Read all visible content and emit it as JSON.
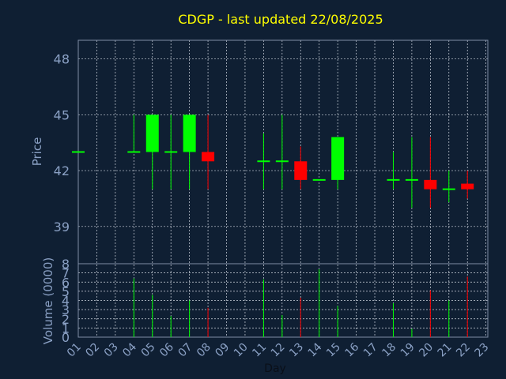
{
  "chart_data": {
    "type": "candlestick",
    "title": "CDGP - last updated 22/08/2025",
    "price_axis": {
      "label": "Price",
      "ylim": [
        37,
        49
      ],
      "ticks": [
        39,
        42,
        45,
        48
      ]
    },
    "volume_axis": {
      "label": "Volume (0000)",
      "ylim": [
        0,
        8
      ],
      "ticks": [
        0,
        1,
        2,
        3,
        4,
        5,
        6,
        7,
        8
      ]
    },
    "x_axis": {
      "label": "Day",
      "ticks": [
        "01",
        "02",
        "03",
        "04",
        "05",
        "06",
        "07",
        "08",
        "09",
        "10",
        "11",
        "12",
        "13",
        "14",
        "15",
        "16",
        "17",
        "18",
        "19",
        "20",
        "21",
        "22",
        "23"
      ]
    },
    "grid": true,
    "colors": {
      "up": "#00ff00",
      "down": "#ff0000",
      "background": "#0f1f33",
      "title": "#ffff00",
      "tick": "#8aa0c4"
    },
    "candles": [
      {
        "day": 1,
        "open": 43.0,
        "high": 43.0,
        "low": 43.0,
        "close": 43.0,
        "volume": 0
      },
      {
        "day": 4,
        "open": 43.0,
        "high": 45.0,
        "low": 43.0,
        "close": 43.0,
        "volume": 6.4
      },
      {
        "day": 5,
        "open": 43.0,
        "high": 45.0,
        "low": 41.0,
        "close": 45.0,
        "volume": 4.6
      },
      {
        "day": 6,
        "open": 43.0,
        "high": 45.0,
        "low": 41.0,
        "close": 43.0,
        "volume": 2.3
      },
      {
        "day": 7,
        "open": 43.0,
        "high": 45.0,
        "low": 41.0,
        "close": 45.0,
        "volume": 4.0
      },
      {
        "day": 8,
        "open": 43.0,
        "high": 45.0,
        "low": 41.0,
        "close": 42.5,
        "volume": 3.2
      },
      {
        "day": 11,
        "open": 42.5,
        "high": 44.0,
        "low": 41.0,
        "close": 42.5,
        "volume": 6.3
      },
      {
        "day": 12,
        "open": 42.5,
        "high": 45.0,
        "low": 41.0,
        "close": 42.5,
        "volume": 2.4
      },
      {
        "day": 13,
        "open": 42.5,
        "high": 43.3,
        "low": 41.0,
        "close": 41.5,
        "volume": 4.3
      },
      {
        "day": 14,
        "open": 41.5,
        "high": 41.5,
        "low": 41.5,
        "close": 41.5,
        "volume": 7.4
      },
      {
        "day": 15,
        "open": 41.5,
        "high": 43.8,
        "low": 41.0,
        "close": 43.8,
        "volume": 3.4
      },
      {
        "day": 18,
        "open": 41.5,
        "high": 43.0,
        "low": 41.0,
        "close": 41.5,
        "volume": 3.7
      },
      {
        "day": 19,
        "open": 41.5,
        "high": 43.8,
        "low": 40.0,
        "close": 41.5,
        "volume": 0.9
      },
      {
        "day": 20,
        "open": 41.5,
        "high": 43.8,
        "low": 40.0,
        "close": 41.0,
        "volume": 5.1
      },
      {
        "day": 21,
        "open": 41.0,
        "high": 42.0,
        "low": 40.3,
        "close": 41.0,
        "volume": 4.0
      },
      {
        "day": 22,
        "open": 41.3,
        "high": 42.0,
        "low": 40.5,
        "close": 41.0,
        "volume": 6.6
      }
    ]
  }
}
